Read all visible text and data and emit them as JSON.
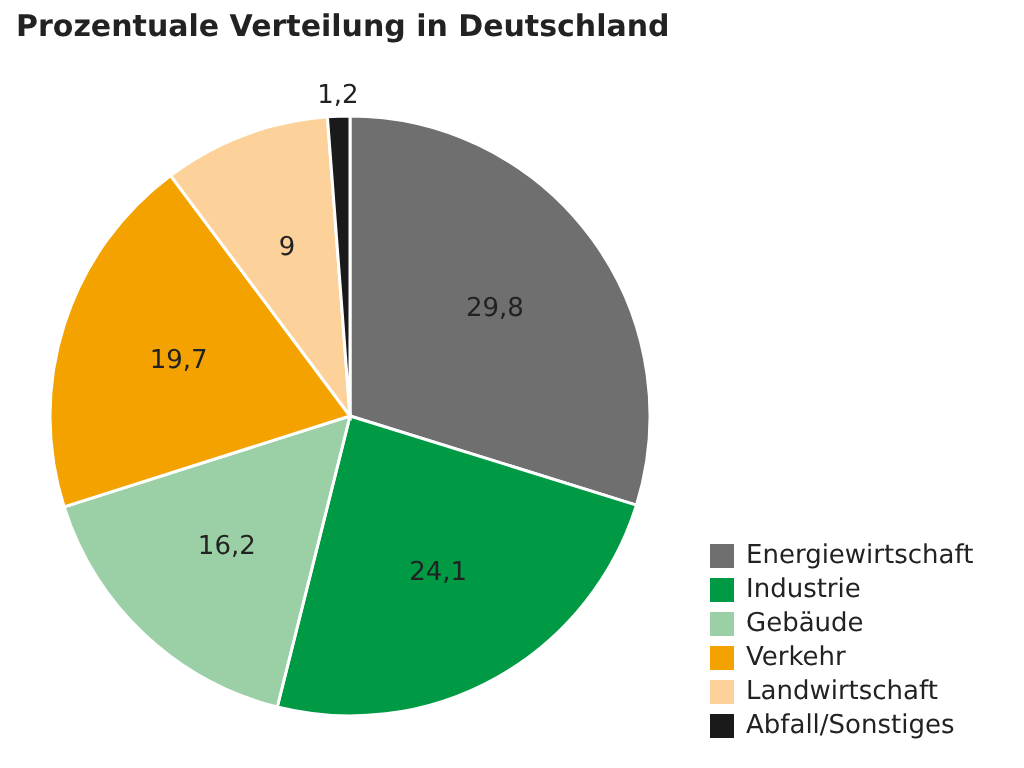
{
  "chart_data": {
    "type": "pie",
    "title": "Prozentuale Verteilung in Deutschland",
    "categories": [
      "Energiewirtschaft",
      "Industrie",
      "Gebäude",
      "Verkehr",
      "Landwirtschaft",
      "Abfall/Sonstiges"
    ],
    "values": [
      29.8,
      24.1,
      16.2,
      19.7,
      9,
      1.2
    ],
    "colors": [
      "#6f6f6f",
      "#009a44",
      "#9bd0a6",
      "#f4a200",
      "#fdd29a",
      "#1a1a1a"
    ],
    "value_labels": [
      "29,8",
      "24,1",
      "16,2",
      "19,7",
      "9",
      "1,2"
    ],
    "legend": "bottom right"
  }
}
